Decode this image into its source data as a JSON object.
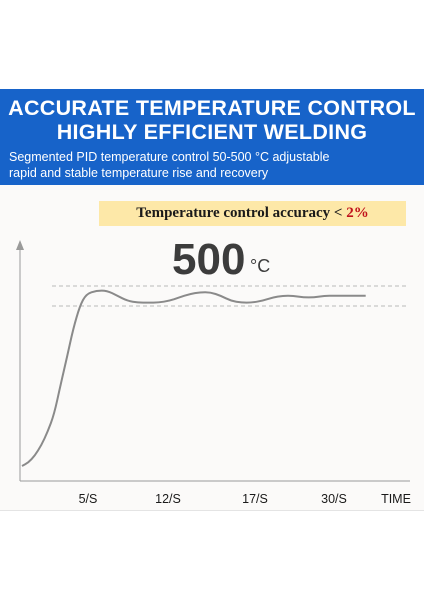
{
  "header": {
    "title_line1": "ACCURATE TEMPERATURE CONTROL",
    "title_line2": "HIGHLY EFFICIENT WELDING",
    "subtitle_line1": "Segmented PID temperature control 50-500 °C adjustable",
    "subtitle_line2": "rapid and stable temperature rise and recovery"
  },
  "accuracy": {
    "label": "Temperature control accuracy",
    "symbol": "<",
    "value": "2%"
  },
  "setpoint": {
    "value": "500",
    "unit": "°C"
  },
  "colors": {
    "banner": "#1763c9",
    "accuracy_bg": "#fde8a8",
    "accuracy_value": "#c0121c",
    "curve": "#8a8a8a"
  },
  "chart_data": {
    "type": "line",
    "title": "",
    "xlabel": "TIME",
    "ylabel": "",
    "x_tick_labels": [
      "5/S",
      "12/S",
      "17/S",
      "30/S"
    ],
    "reference_lines": "dashed band around setpoint",
    "grid": false,
    "series": [
      {
        "values_relative": [
          0.0,
          0.02,
          0.06,
          0.12,
          0.2,
          0.3,
          0.47,
          0.63,
          0.8,
          0.93,
          1.0,
          1.02,
          1.02,
          0.99,
          0.96,
          0.95,
          0.95,
          0.95,
          0.96,
          0.98,
          1.0,
          1.01,
          1.01,
          0.99,
          0.96,
          0.95,
          0.95,
          0.96,
          0.98,
          0.99,
          0.99,
          0.98,
          0.98,
          0.99,
          0.99,
          0.99,
          0.99,
          0.99
        ]
      }
    ]
  }
}
